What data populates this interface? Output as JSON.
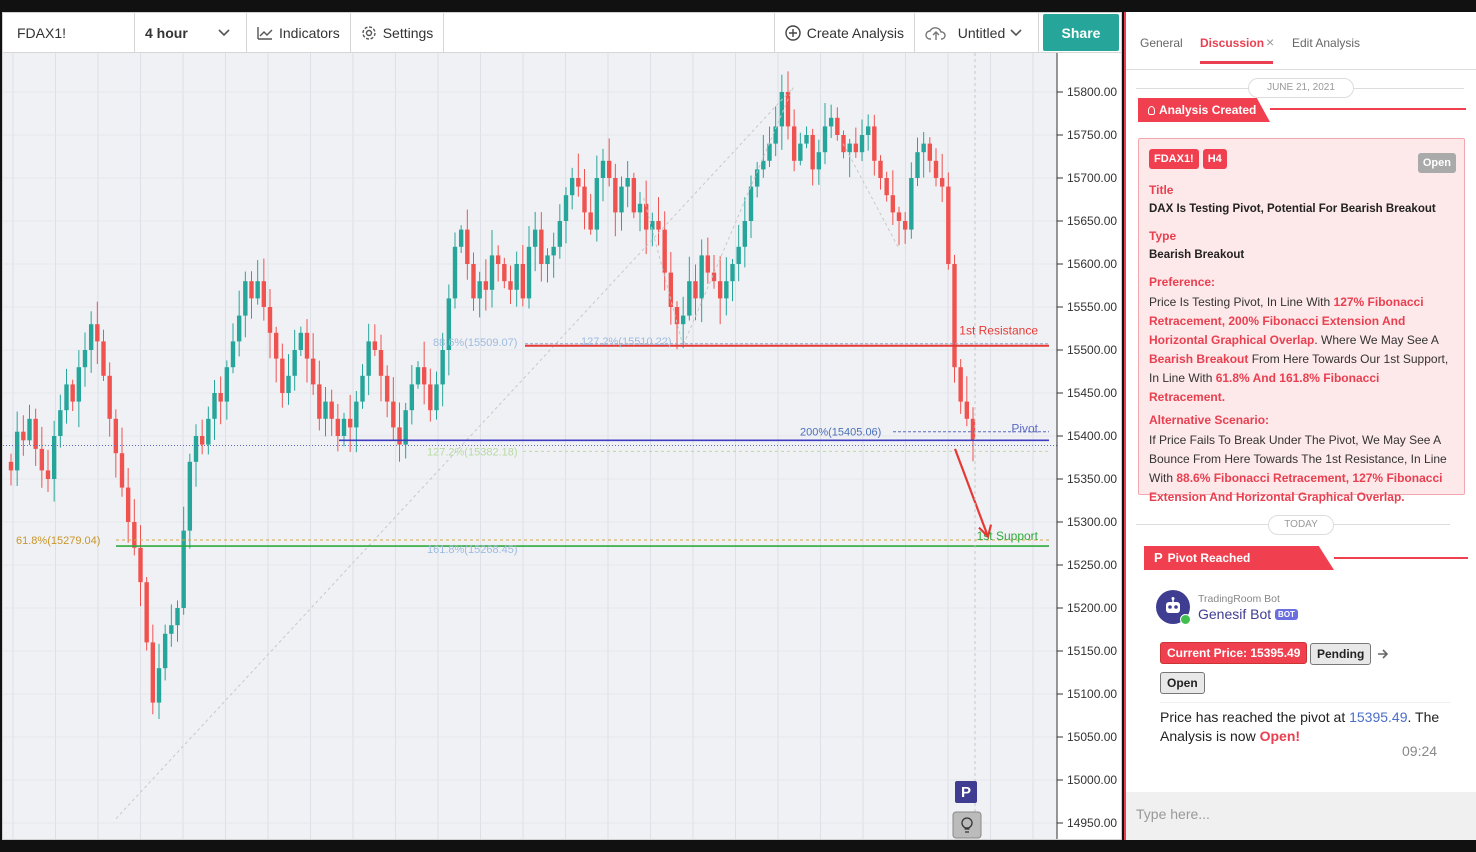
{
  "toolbar": {
    "symbol": "FDAX1!",
    "interval": "4 hour",
    "indicators": "Indicators",
    "settings": "Settings",
    "create_analysis": "Create Analysis",
    "layout_name": "Untitled",
    "share": "Share"
  },
  "chart_data": {
    "type": "candlestick",
    "symbol": "FDAX1!",
    "interval": "4 hour",
    "ylim": [
      14925,
      15830
    ],
    "y_ticks": [
      14950,
      15000,
      15050,
      15100,
      15150,
      15200,
      15250,
      15300,
      15350,
      15400,
      15450,
      15500,
      15550,
      15600,
      15650,
      15700,
      15750,
      15800
    ],
    "y_tick_labels": [
      "14950.00",
      "15000.00",
      "15050.00",
      "15100.00",
      "15150.00",
      "15200.00",
      "15250.00",
      "15300.00",
      "15350.00",
      "15400.00",
      "15450.00",
      "15500.00",
      "15550.00",
      "15600.00",
      "15650.00",
      "15700.00",
      "15750.00",
      "15800.00"
    ],
    "grid": true,
    "up_color": "#26a69a",
    "down_color": "#ef5350",
    "closes": [
      15360,
      15405,
      15395,
      15420,
      15385,
      15360,
      15350,
      15400,
      15430,
      15460,
      15440,
      15480,
      15500,
      15530,
      15510,
      15470,
      15420,
      15380,
      15340,
      15300,
      15270,
      15230,
      15160,
      15090,
      15130,
      15170,
      15180,
      15200,
      15290,
      15370,
      15400,
      15390,
      15420,
      15450,
      15440,
      15480,
      15510,
      15540,
      15580,
      15560,
      15580,
      15550,
      15520,
      15490,
      15450,
      15470,
      15500,
      15520,
      15490,
      15460,
      15420,
      15440,
      15420,
      15400,
      15420,
      15410,
      15440,
      15470,
      15510,
      15500,
      15470,
      15440,
      15410,
      15390,
      15430,
      15460,
      15480,
      15460,
      15430,
      15460,
      15500,
      15560,
      15620,
      15640,
      15600,
      15560,
      15580,
      15570,
      15610,
      15600,
      15580,
      15570,
      15600,
      15560,
      15620,
      15640,
      15600,
      15610,
      15620,
      15650,
      15680,
      15700,
      15690,
      15660,
      15640,
      15700,
      15720,
      15700,
      15660,
      15690,
      15700,
      15660,
      15670,
      15640,
      15650,
      15640,
      15590,
      15550,
      15530,
      15540,
      15580,
      15560,
      15610,
      15590,
      15580,
      15560,
      15580,
      15600,
      15620,
      15650,
      15690,
      15710,
      15720,
      15740,
      15760,
      15800,
      15760,
      15720,
      15740,
      15750,
      15710,
      15730,
      15760,
      15770,
      15750,
      15730,
      15740,
      15730,
      15750,
      15760,
      15720,
      15700,
      15680,
      15660,
      15650,
      15640,
      15700,
      15730,
      15740,
      15720,
      15700,
      15690,
      15600,
      15480,
      15440,
      15420,
      15395
    ],
    "annotations": {
      "resistance": {
        "label": "1st Resistance",
        "price": 15505
      },
      "pivot": {
        "label": "Pivot",
        "price": 15395
      },
      "support": {
        "label": "1st Support",
        "price": 15272
      },
      "fib_labels": [
        {
          "text": "88.6%(15509.07)",
          "price": 15509.07
        },
        {
          "text": "127.2%(15510.22)",
          "price": 15510.22
        },
        {
          "text": "200%(15405.06)",
          "price": 15405.06
        },
        {
          "text": "127.2%(15382.18)",
          "price": 15382.18
        },
        {
          "text": "61.8%(15279.04)",
          "price": 15279.04
        },
        {
          "text": "161.8%(15268.45)",
          "price": 15268.45
        }
      ]
    },
    "markers": {
      "pivot_marker": "P",
      "analysis_marker": "lightbulb-icon"
    }
  },
  "sidebar": {
    "tabs": [
      "General",
      "Discussion",
      "Edit Analysis"
    ],
    "active_tab": "Discussion",
    "close_glyph": "×",
    "date1": "JUNE 21, 2021",
    "analysis_created": "Analysis Created",
    "card": {
      "symbol_badge": "FDAX1!",
      "tf_badge": "H4",
      "status": "Open",
      "title_label": "Title",
      "title": "DAX Is Testing Pivot, Potential For Bearish Breakout",
      "type_label": "Type",
      "type": "Bearish Breakout",
      "pref_label": "Preference:",
      "pref_1": "Price Is Testing Pivot, In Line With ",
      "pref_2": "127% Fibonacci Retracement, 200% Fibonacci Extension And Horizontal Graphical Overlap",
      "pref_3": ". Where We May See A ",
      "pref_4": "Bearish Breakout",
      "pref_5": " From Here Towards Our 1st Support, In Line With ",
      "pref_6": "61.8% And 161.8% Fibonacci Retracement.",
      "alt_label": "Alternative Scenario:",
      "alt_1": "If Price Fails To Break Under The Pivot, We May See A Bounce From Here Towards The 1st Resistance, In Line With ",
      "alt_2": "88.6% Fibonacci Retracement, 127% Fibonacci Extension And Horizontal Graphical Overlap."
    },
    "date2": "TODAY",
    "pivot_reached": "Pivot Reached",
    "bot": {
      "org": "TradingRoom Bot",
      "name": "Genesif Bot",
      "tag": "BOT",
      "current_price": "Current Price: 15395.49",
      "pending": "Pending",
      "open": "Open",
      "msg_1": "Price has reached the pivot at ",
      "msg_price": "15395.49",
      "msg_2": ". The Analysis is now ",
      "msg_open": "Open!",
      "time": "09:24"
    },
    "input_placeholder": "Type here..."
  }
}
